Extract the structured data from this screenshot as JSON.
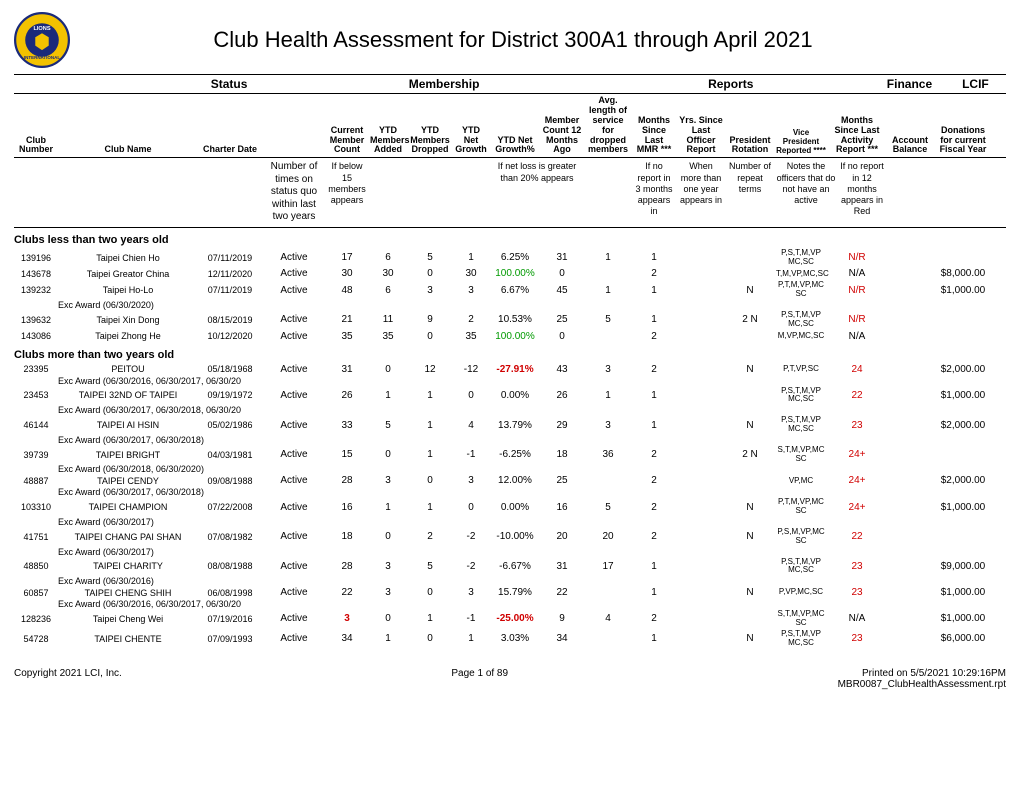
{
  "title": "Club Health Assessment for District 300A1 through April 2021",
  "groupHeaders": {
    "status": "Status",
    "membership": "Membership",
    "reports": "Reports",
    "finance": "Finance",
    "lcif": "LCIF"
  },
  "colHeaders": {
    "clubNumber": "Club Number",
    "clubName": "Club Name",
    "charterDate": "Charter Date",
    "cmc": "Current Member Count",
    "ytdAdd": "YTD Members Added",
    "ytdDrop": "YTD Members Dropped",
    "netG": "YTD Net Growth",
    "netGP": "YTD Net Growth%",
    "mc12": "Member Count 12 Months Ago",
    "avgLen": "Avg. length of service for dropped members",
    "mmr": "Months Since Last MMR ***",
    "yrs": "Yrs. Since Last Officer Report",
    "prot": "President Rotation",
    "vp": "Vice President Reported ****",
    "mact": "Months Since Last Activity Report ***",
    "acct": "Account Balance",
    "don": "Donations for current Fiscal Year"
  },
  "notes": {
    "status": "Number of times on status quo within last two years",
    "cmc": "If below 15 members appears",
    "netloss": "If net loss is greater than 20% appears",
    "mmr": "If no report in 3 months appears in",
    "yrs": "When more than one year appears in",
    "prot": "Number of repeat terms",
    "vp": "Notes the officers that do not have an active",
    "mact": "If no report in 12 months appears in Red"
  },
  "sections": [
    {
      "title": "Clubs less than two years old",
      "rows": [
        {
          "num": "139196",
          "name": "Taipei Chien Ho",
          "charter": "07/11/2019",
          "status": "Active",
          "cmc": "17",
          "add": "6",
          "drop": "5",
          "net": "1",
          "netp": "6.25%",
          "mc12": "31",
          "avg": "1",
          "mmr": "1",
          "yrs": "",
          "prot": "",
          "vp": "P,S,T,M,VP MC,SC",
          "mact": "N/R",
          "mactRed": true,
          "acct": "",
          "don": ""
        },
        {
          "num": "143678",
          "name": "Taipei Greator China",
          "charter": "12/11/2020",
          "status": "Active",
          "cmc": "30",
          "add": "30",
          "drop": "0",
          "net": "30",
          "netp": "100.00%",
          "netpGreen": true,
          "mc12": "0",
          "avg": "",
          "mmr": "2",
          "yrs": "",
          "prot": "",
          "vp": "T,M,VP,MC,SC",
          "mact": "N/A",
          "acct": "",
          "don": "$8,000.00"
        },
        {
          "num": "139232",
          "name": "Taipei Ho-Lo",
          "charter": "07/11/2019",
          "status": "Active",
          "cmc": "48",
          "add": "6",
          "drop": "3",
          "net": "3",
          "netp": "6.67%",
          "mc12": "45",
          "avg": "1",
          "mmr": "1",
          "yrs": "",
          "prot": "N",
          "vp": "P,T,M,VP,MC SC",
          "mact": "N/R",
          "mactRed": true,
          "acct": "",
          "don": "$1,000.00",
          "award": "Exc Award (06/30/2020)"
        },
        {
          "num": "139632",
          "name": "Taipei Xin Dong",
          "charter": "08/15/2019",
          "status": "Active",
          "cmc": "21",
          "add": "11",
          "drop": "9",
          "net": "2",
          "netp": "10.53%",
          "mc12": "25",
          "avg": "5",
          "mmr": "1",
          "yrs": "",
          "prot": "2    N",
          "vp": "P,S,T,M,VP MC,SC",
          "mact": "N/R",
          "mactRed": true,
          "acct": "",
          "don": ""
        },
        {
          "num": "143086",
          "name": "Taipei Zhong He",
          "charter": "10/12/2020",
          "status": "Active",
          "cmc": "35",
          "add": "35",
          "drop": "0",
          "net": "35",
          "netp": "100.00%",
          "netpGreen": true,
          "mc12": "0",
          "avg": "",
          "mmr": "2",
          "yrs": "",
          "prot": "",
          "vp": "M,VP,MC,SC",
          "mact": "N/A",
          "acct": "",
          "don": ""
        }
      ]
    },
    {
      "title": "Clubs more than two years old",
      "rows": [
        {
          "num": "23395",
          "name": "PEITOU",
          "charter": "05/18/1968",
          "status": "Active",
          "cmc": "31",
          "add": "0",
          "drop": "12",
          "net": "-12",
          "netp": "-27.91%",
          "netpRed": true,
          "mc12": "43",
          "avg": "3",
          "mmr": "2",
          "yrs": "",
          "prot": "N",
          "vp": "P,T,VP,SC",
          "mact": "24",
          "mactRed": true,
          "acct": "",
          "don": "$2,000.00",
          "award": "Exc Award (06/30/2016, 06/30/2017, 06/30/20"
        },
        {
          "num": "23453",
          "name": "TAIPEI 32ND OF TAIPEI",
          "charter": "09/19/1972",
          "status": "Active",
          "cmc": "26",
          "add": "1",
          "drop": "1",
          "net": "0",
          "netp": "0.00%",
          "mc12": "26",
          "avg": "1",
          "mmr": "1",
          "yrs": "",
          "prot": "",
          "vp": "P,S,T,M,VP MC,SC",
          "mact": "22",
          "mactRed": true,
          "acct": "",
          "don": "$1,000.00",
          "award": "Exc Award (06/30/2017, 06/30/2018, 06/30/20"
        },
        {
          "num": "46144",
          "name": "TAIPEI AI HSIN",
          "charter": "05/02/1986",
          "status": "Active",
          "cmc": "33",
          "add": "5",
          "drop": "1",
          "net": "4",
          "netp": "13.79%",
          "mc12": "29",
          "avg": "3",
          "mmr": "1",
          "yrs": "",
          "prot": "N",
          "vp": "P,S,T,M,VP MC,SC",
          "mact": "23",
          "mactRed": true,
          "acct": "",
          "don": "$2,000.00",
          "award": "Exc Award (06/30/2017, 06/30/2018)"
        },
        {
          "num": "39739",
          "name": "TAIPEI BRIGHT",
          "charter": "04/03/1981",
          "status": "Active",
          "cmc": "15",
          "add": "0",
          "drop": "1",
          "net": "-1",
          "netp": "-6.25%",
          "mc12": "18",
          "avg": "36",
          "mmr": "2",
          "yrs": "",
          "prot": "2    N",
          "vp": "S,T,M,VP,MC SC",
          "mact": "24+",
          "mactRed": true,
          "acct": "",
          "don": "",
          "award": "Exc Award (06/30/2018, 06/30/2020)"
        },
        {
          "num": "48887",
          "name": "TAIPEI CENDY",
          "charter": "09/08/1988",
          "status": "Active",
          "cmc": "28",
          "add": "3",
          "drop": "0",
          "net": "3",
          "netp": "12.00%",
          "mc12": "25",
          "avg": "",
          "mmr": "2",
          "yrs": "",
          "prot": "",
          "vp": "VP,MC",
          "mact": "24+",
          "mactRed": true,
          "acct": "",
          "don": "$2,000.00",
          "award": "Exc Award (06/30/2017, 06/30/2018)"
        },
        {
          "num": "103310",
          "name": "TAIPEI CHAMPION",
          "charter": "07/22/2008",
          "status": "Active",
          "cmc": "16",
          "add": "1",
          "drop": "1",
          "net": "0",
          "netp": "0.00%",
          "mc12": "16",
          "avg": "5",
          "mmr": "2",
          "yrs": "",
          "prot": "N",
          "vp": "P,T,M,VP,MC SC",
          "mact": "24+",
          "mactRed": true,
          "acct": "",
          "don": "$1,000.00",
          "award": "Exc Award (06/30/2017)"
        },
        {
          "num": "41751",
          "name": "TAIPEI CHANG PAI SHAN",
          "charter": "07/08/1982",
          "status": "Active",
          "cmc": "18",
          "add": "0",
          "drop": "2",
          "net": "-2",
          "netp": "-10.00%",
          "mc12": "20",
          "avg": "20",
          "mmr": "2",
          "yrs": "",
          "prot": "N",
          "vp": "P,S,M,VP,MC SC",
          "mact": "22",
          "mactRed": true,
          "acct": "",
          "don": "",
          "award": "Exc Award (06/30/2017)"
        },
        {
          "num": "48850",
          "name": "TAIPEI CHARITY",
          "charter": "08/08/1988",
          "status": "Active",
          "cmc": "28",
          "add": "3",
          "drop": "5",
          "net": "-2",
          "netp": "-6.67%",
          "mc12": "31",
          "avg": "17",
          "mmr": "1",
          "yrs": "",
          "prot": "",
          "vp": "P,S,T,M,VP MC,SC",
          "mact": "23",
          "mactRed": true,
          "acct": "",
          "don": "$9,000.00",
          "award": "Exc Award (06/30/2016)"
        },
        {
          "num": "60857",
          "name": "TAIPEI CHENG SHIH",
          "charter": "06/08/1998",
          "status": "Active",
          "cmc": "22",
          "add": "3",
          "drop": "0",
          "net": "3",
          "netp": "15.79%",
          "mc12": "22",
          "avg": "",
          "mmr": "1",
          "yrs": "",
          "prot": "N",
          "vp": "P,VP,MC,SC",
          "mact": "23",
          "mactRed": true,
          "acct": "",
          "don": "$1,000.00",
          "award": "Exc Award (06/30/2016, 06/30/2017, 06/30/20"
        },
        {
          "num": "128236",
          "name": "Taipei Cheng Wei",
          "charter": "07/19/2016",
          "status": "Active",
          "cmc": "3",
          "cmcRed": true,
          "add": "0",
          "drop": "1",
          "net": "-1",
          "netp": "-25.00%",
          "netpRed": true,
          "mc12": "9",
          "avg": "4",
          "mmr": "2",
          "yrs": "",
          "prot": "",
          "vp": "S,T,M,VP,MC SC",
          "mact": "N/A",
          "acct": "",
          "don": "$1,000.00"
        },
        {
          "num": "54728",
          "name": "TAIPEI CHENTE",
          "charter": "07/09/1993",
          "status": "Active",
          "cmc": "34",
          "add": "1",
          "drop": "0",
          "net": "1",
          "netp": "3.03%",
          "mc12": "34",
          "avg": "",
          "mmr": "1",
          "yrs": "",
          "prot": "N",
          "vp": "P,S,T,M,VP MC,SC",
          "mact": "23",
          "mactRed": true,
          "acct": "",
          "don": "$6,000.00"
        }
      ]
    }
  ],
  "footer": {
    "left": "Copyright 2021 LCI, Inc.",
    "center": "Page 1 of 89",
    "right1": "Printed on  5/5/2021  10:29:16PM",
    "right2": "MBR0087_ClubHealthAssessment.rpt"
  },
  "colors": {
    "red": "#d00000",
    "green": "#009a00"
  }
}
